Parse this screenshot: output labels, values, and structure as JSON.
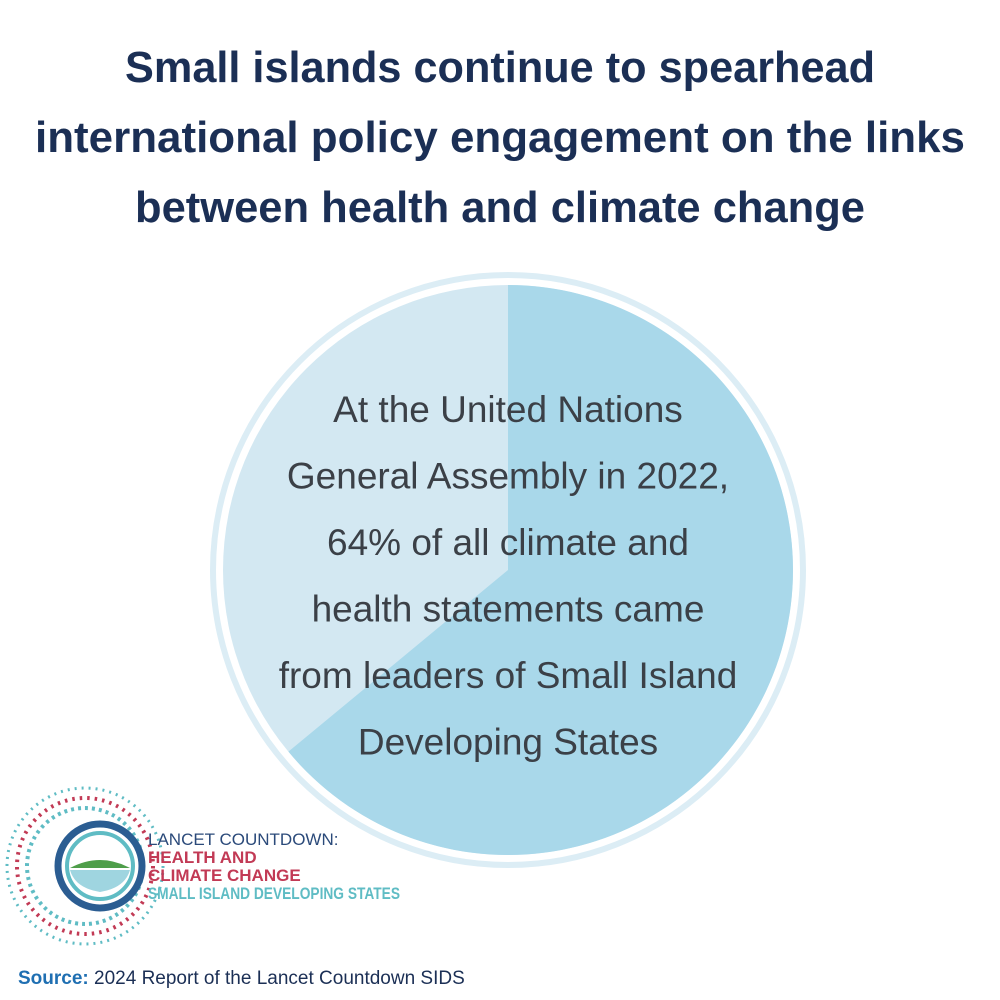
{
  "title": [
    "Small islands continue to spearhead",
    "international policy engagement on the links",
    "between health and climate change"
  ],
  "statement": [
    "At the United Nations",
    "General Assembly in 2022,",
    "64% of all climate and",
    "health statements came",
    "from leaders of Small Island",
    "Developing States"
  ],
  "share": 64,
  "logo": {
    "line1": "LANCET COUNTDOWN:",
    "line2": "HEALTH AND",
    "line3": "CLIMATE CHANGE",
    "line4": "SMALL ISLAND DEVELOPING STATES"
  },
  "source": {
    "label": "Source:",
    "text": "2024 Report of the Lancet Countdown SIDS"
  }
}
